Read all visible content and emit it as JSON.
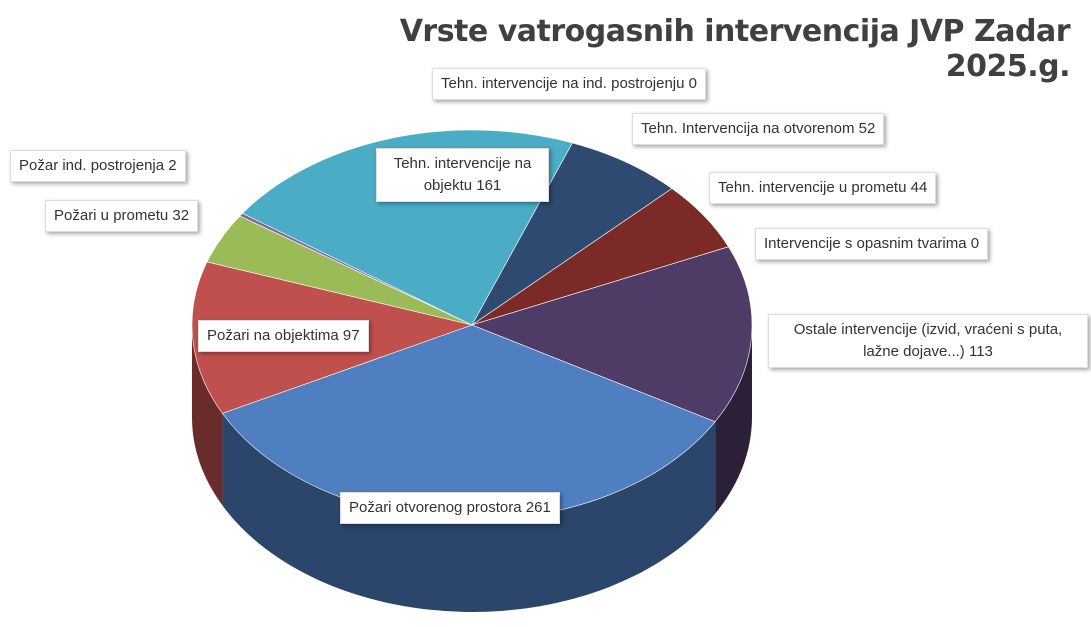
{
  "chart_data": {
    "type": "pie3d",
    "title": "Vrste vatrogasnih intervencija JVP Zadar 2025.g.",
    "categories": [
      "Tehn. intervencije na ind. postrojenju",
      "Tehn. Intervencija na otvorenom",
      "Tehn. intervencije u prometu",
      "Intervencije s opasnim tvarima",
      "Ostale intervencije (izvid, vraćeni s puta, lažne dojave...)",
      "Požari otvorenog prostora",
      "Požari na objektima",
      "Požari u prometu",
      "Požar ind. postrojenja",
      "Tehn. intervencije na objektu"
    ],
    "values": [
      0,
      52,
      44,
      0,
      113,
      261,
      97,
      32,
      2,
      161
    ],
    "colors": [
      "#7f7f7f",
      "#2e4a70",
      "#7b2a27",
      "#5a7a3a",
      "#4e3b66",
      "#4f7fc0",
      "#c0504d",
      "#9bbb59",
      "#8064a2",
      "#4bacc6"
    ]
  }
}
